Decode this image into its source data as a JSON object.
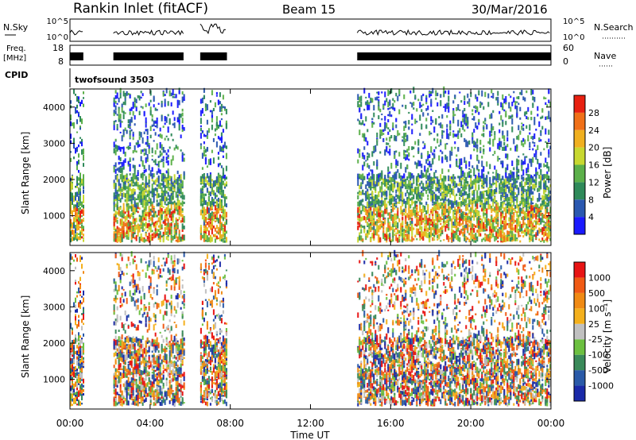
{
  "header": {
    "station": "Rankin Inlet (fitACF)",
    "beam": "Beam 15",
    "date": "30/Mar/2016"
  },
  "labels": {
    "nsky": "N.Sky",
    "freq": "Freq.",
    "mhz": "[MHz]",
    "cpid": "CPID",
    "nsearch": "N.Search",
    "nave": "Nave",
    "cpid_value": "twofsound 3503",
    "time_axis": "Time UT",
    "slant_range": "Slant Range [km]"
  },
  "ticks": {
    "nsky_left": [
      "10^5",
      "10^0"
    ],
    "nsky_right": [
      "10^5",
      "10^0"
    ],
    "freq_left": [
      "18",
      "8"
    ],
    "freq_right": [
      "60",
      "0"
    ],
    "range": [
      "1000",
      "2000",
      "3000",
      "4000"
    ],
    "time": [
      "00:00",
      "04:00",
      "08:00",
      "12:00",
      "16:00",
      "20:00",
      "00:00"
    ]
  },
  "colors": {
    "power_scale": [
      "#1a1aff",
      "#2a58b0",
      "#2f8a5a",
      "#5cb04a",
      "#c8d830",
      "#f0b020",
      "#f07018",
      "#e82010"
    ],
    "velocity_scale": [
      "#e81414",
      "#f05a14",
      "#f08a14",
      "#f4b01c",
      "#c0c0c0",
      "#6cc040",
      "#3a8a5a",
      "#2a5aa8",
      "#1a2aa8"
    ]
  },
  "chart_data": [
    {
      "type": "heatmap",
      "title": "Power",
      "ylabel": "Slant Range [km]",
      "xlabel": "Time UT",
      "xlim": [
        "00:00",
        "00:00"
      ],
      "ylim": [
        180,
        4500
      ],
      "colorbar": {
        "label": "Power [dB]",
        "ticks": [
          4,
          8,
          12,
          16,
          20,
          24,
          28
        ],
        "range": [
          0,
          32
        ]
      },
      "data_periods": [
        {
          "start": "00:00",
          "end": "00:40"
        },
        {
          "start": "02:10",
          "end": "05:40"
        },
        {
          "start": "06:30",
          "end": "07:50"
        },
        {
          "start": "14:20",
          "end": "24:00"
        }
      ]
    },
    {
      "type": "heatmap",
      "title": "Velocity",
      "ylabel": "Slant Range [km]",
      "xlabel": "Time UT",
      "xlim": [
        "00:00",
        "00:00"
      ],
      "ylim": [
        180,
        4500
      ],
      "colorbar": {
        "label": "Velocity [m s⁻¹]",
        "ticks": [
          1000,
          500,
          100,
          25,
          -25,
          -100,
          -500,
          -1000
        ]
      },
      "data_periods": [
        {
          "start": "00:00",
          "end": "00:40"
        },
        {
          "start": "02:10",
          "end": "05:40"
        },
        {
          "start": "06:30",
          "end": "07:50"
        },
        {
          "start": "14:20",
          "end": "24:00"
        }
      ]
    }
  ]
}
